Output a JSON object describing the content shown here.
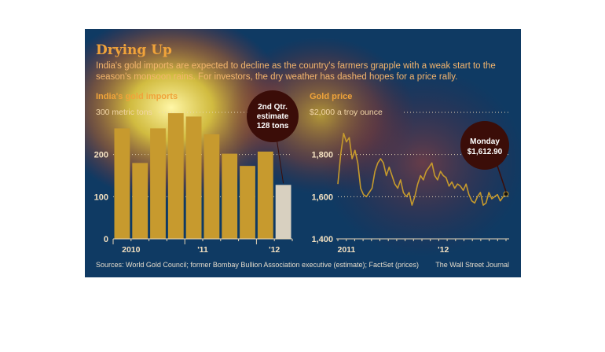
{
  "header": {
    "title": "Drying Up",
    "subtitle_line1": "India's gold imports are expected to decline as the country's farmers grapple with a weak start to the",
    "subtitle_line2": "season's monsoon rains. For investors, the dry weather has dashed hopes for a price rally."
  },
  "colors": {
    "background": "#0f3a63",
    "bar": "#c79a2e",
    "bar_estimate": "#d8d0c0",
    "price_line": "#c69a2c",
    "title": "#f0a33a",
    "gridline": "#e8d7b8",
    "callout": "#3b0d08"
  },
  "footer": {
    "sources": "Sources: World Gold Council; former Bombay Bullion Association executive (estimate); FactSet (prices)",
    "credit": "The Wall Street Journal"
  },
  "chart_data": [
    {
      "type": "bar",
      "title": "India's gold imports",
      "unit_label": "300 metric tons",
      "ylim": [
        0,
        300
      ],
      "yticks": [
        0,
        100,
        200
      ],
      "categories": [
        "2010 Q1",
        "2010 Q2",
        "2010 Q3",
        "2010 Q4",
        "2011 Q1",
        "2011 Q2",
        "2011 Q3",
        "2011 Q4",
        "2012 Q1",
        "2012 Q2 (est.)"
      ],
      "x_tick_labels": [
        {
          "label": "2010",
          "index": 0.5
        },
        {
          "label": "'11",
          "index": 4.5
        },
        {
          "label": "'12",
          "index": 8.5
        }
      ],
      "values": [
        262,
        180,
        262,
        298,
        290,
        248,
        202,
        173,
        207,
        128
      ],
      "estimate_index": 9,
      "callout": {
        "line1": "2nd Qtr.",
        "line2": "estimate",
        "line3": "128 tons"
      },
      "grid": true
    },
    {
      "type": "line",
      "title": "Gold price",
      "unit_label": "$2,000 a troy ounce",
      "ylim": [
        1400,
        2000
      ],
      "yticks": [
        1400,
        1600,
        1800
      ],
      "ytick_labels": [
        "1,400",
        "1,600",
        "1,800"
      ],
      "x_tick_labels": [
        {
          "label": "2011",
          "index": 3
        },
        {
          "label": "'12",
          "index": 37
        }
      ],
      "values": [
        1660,
        1800,
        1900,
        1860,
        1880,
        1780,
        1820,
        1760,
        1640,
        1610,
        1600,
        1620,
        1640,
        1720,
        1760,
        1780,
        1760,
        1700,
        1740,
        1700,
        1660,
        1640,
        1680,
        1620,
        1600,
        1620,
        1560,
        1600,
        1660,
        1700,
        1680,
        1720,
        1740,
        1760,
        1700,
        1680,
        1720,
        1700,
        1690,
        1650,
        1670,
        1640,
        1660,
        1650,
        1630,
        1660,
        1610,
        1580,
        1570,
        1600,
        1620,
        1560,
        1570,
        1620,
        1590,
        1600,
        1610,
        1580,
        1600,
        1612.9
      ],
      "callout": {
        "line1": "Monday",
        "line2": "$1,612.90"
      },
      "grid": true
    }
  ]
}
